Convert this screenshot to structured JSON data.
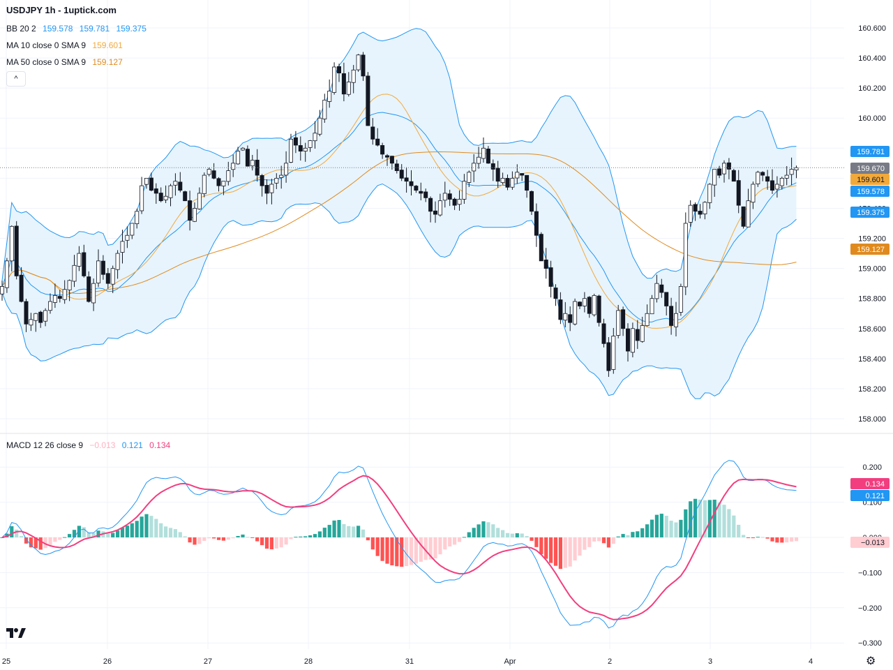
{
  "header": {
    "title": "USDJPY 1h - 1uptick.com",
    "bb_label": "BB 20 2",
    "bb_values": [
      "159.578",
      "159.781",
      "159.375"
    ],
    "ma10_label": "MA 10 close 0 SMA 9",
    "ma10_value": "159.601",
    "ma50_label": "MA 50 close 0 SMA 9",
    "ma50_value": "159.127",
    "collapse_glyph": "^",
    "macd_label": "MACD 12 26 close 9",
    "macd_values": [
      "−0.013",
      "0.121",
      "0.134"
    ]
  },
  "colors": {
    "bb_band": "#2196f3",
    "bb_fill": "#e3f2fd",
    "ma10": "#f2a93b",
    "ma50": "#e08a1e",
    "macd_line": "#2196f3",
    "signal_line": "#f23e7e",
    "hist_pos_strong": "#26a69a",
    "hist_pos_weak": "#b2dfdb",
    "hist_neg_strong": "#ff5252",
    "hist_neg_weak": "#ffcdd2",
    "last_price": "#787b86"
  },
  "chart_data": [
    {
      "type": "candlestick",
      "title": "USDJPY 1h",
      "ylim": [
        157.98,
        160.62
      ],
      "yticks": [
        "160.600",
        "160.400",
        "160.200",
        "160.000",
        "159.800",
        "159.600",
        "159.400",
        "159.200",
        "159.000",
        "158.800",
        "158.600",
        "158.400",
        "158.200",
        "158.000"
      ],
      "x_labels": [
        "25",
        "26",
        "27",
        "28",
        "31",
        "Apr",
        "2",
        "3",
        "4"
      ],
      "price_labels": [
        {
          "text": "159.781",
          "value": 159.781,
          "series": "BB upper"
        },
        {
          "text": "159.670",
          "value": 159.67,
          "series": "Last price"
        },
        {
          "text": "159.601",
          "value": 159.601,
          "series": "MA 10"
        },
        {
          "text": "159.578",
          "value": 159.578,
          "series": "BB basis"
        },
        {
          "text": "159.375",
          "value": 159.375,
          "series": "BB lower"
        },
        {
          "text": "159.127",
          "value": 159.127,
          "series": "MA 50"
        }
      ],
      "close": [
        158.88,
        159.05,
        159.28,
        158.95,
        158.78,
        158.63,
        158.66,
        158.7,
        158.64,
        158.72,
        158.78,
        158.82,
        158.8,
        158.86,
        158.92,
        159.02,
        159.1,
        158.95,
        158.78,
        158.9,
        159.05,
        158.96,
        158.9,
        159.0,
        159.1,
        159.18,
        159.22,
        159.3,
        159.38,
        159.55,
        159.6,
        159.52,
        159.5,
        159.45,
        159.48,
        159.55,
        159.58,
        159.52,
        159.45,
        159.32,
        159.4,
        159.5,
        159.62,
        159.66,
        159.6,
        159.55,
        159.58,
        159.65,
        159.7,
        159.78,
        159.8,
        159.68,
        159.72,
        159.62,
        159.55,
        159.5,
        159.56,
        159.6,
        159.62,
        159.7,
        159.86,
        159.82,
        159.78,
        159.8,
        159.85,
        159.9,
        160.0,
        160.12,
        160.18,
        160.34,
        160.3,
        160.16,
        160.24,
        160.32,
        160.42,
        160.28,
        159.95,
        159.86,
        159.82,
        159.76,
        159.74,
        159.7,
        159.65,
        159.6,
        159.58,
        159.55,
        159.52,
        159.5,
        159.47,
        159.38,
        159.36,
        159.45,
        159.5,
        159.46,
        159.42,
        159.46,
        159.58,
        159.64,
        159.7,
        159.74,
        159.8,
        159.7,
        159.66,
        159.58,
        159.6,
        159.54,
        159.6,
        159.64,
        159.62,
        159.52,
        159.38,
        159.22,
        159.05,
        159.0,
        158.88,
        158.8,
        158.66,
        158.7,
        158.64,
        158.78,
        158.75,
        158.8,
        158.7,
        158.82,
        158.64,
        158.5,
        158.32,
        158.55,
        158.72,
        158.6,
        158.45,
        158.6,
        158.52,
        158.62,
        158.7,
        158.8,
        158.9,
        158.84,
        158.75,
        158.62,
        158.7,
        158.88,
        159.3,
        159.42,
        159.38,
        159.36,
        159.44,
        159.56,
        159.66,
        159.62,
        159.7,
        159.66,
        159.58,
        159.42,
        159.28,
        159.45,
        159.56,
        159.64,
        159.62,
        159.58,
        159.52,
        159.56,
        159.6,
        159.62,
        159.66,
        159.67
      ],
      "bb_upper_last": 159.781,
      "bb_basis_last": 159.578,
      "bb_lower_last": 159.375,
      "ma10_last": 159.601,
      "ma50_last": 159.127
    },
    {
      "type": "macd",
      "title": "MACD 12 26 close 9",
      "ylim": [
        -0.31,
        0.22
      ],
      "yticks": [
        "0.200",
        "0.100",
        "0.000",
        "−0.100",
        "−0.200",
        "−0.300"
      ],
      "price_labels": [
        {
          "text": "0.134",
          "value": 0.134,
          "series": "Signal"
        },
        {
          "text": "0.121",
          "value": 0.121,
          "series": "MACD"
        },
        {
          "text": "−0.013",
          "value": -0.013,
          "series": "Histogram"
        }
      ],
      "macd_last": 0.121,
      "signal_last": 0.134,
      "histogram_last": -0.013
    }
  ]
}
